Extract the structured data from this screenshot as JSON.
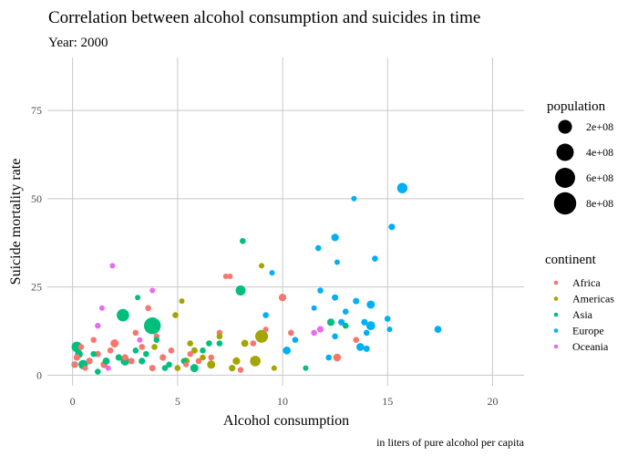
{
  "chart_data": {
    "type": "scatter",
    "title": "Correlation between alcohol consumption and suicides in time",
    "subtitle": "Year: 2000",
    "xlabel": "Alcohol consumption",
    "ylabel": "Suicide mortality rate",
    "caption": "in liters of pure alcohol per capita",
    "xlim": [
      -1.2,
      21.5
    ],
    "ylim": [
      -3,
      90
    ],
    "x_ticks": [
      0,
      5,
      10,
      15,
      20
    ],
    "y_ticks": [
      0,
      25,
      50,
      75
    ],
    "grid": true,
    "size_legend": {
      "title": "population",
      "entries": [
        {
          "label": "2e+08",
          "value": 200000000
        },
        {
          "label": "4e+08",
          "value": 400000000
        },
        {
          "label": "6e+08",
          "value": 600000000
        },
        {
          "label": "8e+08",
          "value": 800000000
        }
      ]
    },
    "color_legend": {
      "title": "continent",
      "placement": "right",
      "entries": [
        {
          "label": "Africa",
          "color": "#F8766D"
        },
        {
          "label": "Americas",
          "color": "#A3A500"
        },
        {
          "label": "Asia",
          "color": "#00BF7D"
        },
        {
          "label": "Europe",
          "color": "#00B0F6"
        },
        {
          "label": "Oceania",
          "color": "#E76BF3"
        }
      ]
    },
    "series": [
      {
        "name": "Africa",
        "color": "#F8766D",
        "points": [
          [
            0.1,
            3,
            10000000
          ],
          [
            0.2,
            5,
            20000000
          ],
          [
            0.4,
            8,
            10000000
          ],
          [
            0.6,
            2,
            5000000
          ],
          [
            0.8,
            4,
            15000000
          ],
          [
            1.0,
            10,
            8000000
          ],
          [
            1.2,
            6,
            12000000
          ],
          [
            1.5,
            3,
            30000000
          ],
          [
            1.8,
            7,
            10000000
          ],
          [
            2.0,
            9,
            60000000
          ],
          [
            2.5,
            5,
            20000000
          ],
          [
            2.8,
            4,
            15000000
          ],
          [
            3.0,
            12,
            10000000
          ],
          [
            3.3,
            8,
            10000000
          ],
          [
            3.6,
            19,
            10000000
          ],
          [
            4.0,
            11,
            10000000
          ],
          [
            4.3,
            5,
            20000000
          ],
          [
            5.4,
            3,
            5000000
          ],
          [
            5.6,
            6,
            8000000
          ],
          [
            6.0,
            4,
            10000000
          ],
          [
            6.6,
            5,
            10000000
          ],
          [
            7.0,
            12,
            10000000
          ],
          [
            7.3,
            28,
            5000000
          ],
          [
            7.5,
            28,
            5000000
          ],
          [
            8.0,
            1.5,
            8000000
          ],
          [
            8.6,
            9,
            10000000
          ],
          [
            9.2,
            13,
            5000000
          ],
          [
            10.0,
            22,
            40000000
          ],
          [
            10.4,
            12,
            10000000
          ],
          [
            12.6,
            5,
            50000000
          ],
          [
            13.5,
            10,
            10000000
          ],
          [
            4.7,
            7,
            10000000
          ],
          [
            3.8,
            2,
            15000000
          ]
        ]
      },
      {
        "name": "Americas",
        "color": "#A3A500",
        "points": [
          [
            4.9,
            17,
            10000000
          ],
          [
            5.2,
            21,
            5000000
          ],
          [
            5.0,
            2,
            10000000
          ],
          [
            5.4,
            4,
            30000000
          ],
          [
            5.8,
            7,
            15000000
          ],
          [
            6.2,
            5,
            10000000
          ],
          [
            6.6,
            3,
            60000000
          ],
          [
            7.0,
            11,
            10000000
          ],
          [
            7.6,
            2,
            20000000
          ],
          [
            7.8,
            4,
            40000000
          ],
          [
            8.2,
            9,
            30000000
          ],
          [
            8.7,
            4,
            150000000
          ],
          [
            9.0,
            11,
            280000000
          ],
          [
            9.0,
            31,
            5000000
          ],
          [
            9.6,
            2,
            5000000
          ],
          [
            3.9,
            8,
            10000000
          ],
          [
            5.6,
            9,
            10000000
          ]
        ]
      },
      {
        "name": "Asia",
        "color": "#00BF7D",
        "points": [
          [
            0.1,
            3,
            20000000
          ],
          [
            0.2,
            8,
            150000000
          ],
          [
            0.3,
            6,
            50000000
          ],
          [
            0.5,
            3,
            100000000
          ],
          [
            0.8,
            4,
            20000000
          ],
          [
            1.0,
            6,
            10000000
          ],
          [
            1.2,
            1,
            10000000
          ],
          [
            1.6,
            4,
            30000000
          ],
          [
            2.2,
            5,
            20000000
          ],
          [
            2.4,
            17,
            260000000
          ],
          [
            2.5,
            4,
            80000000
          ],
          [
            3.0,
            7,
            10000000
          ],
          [
            3.1,
            22,
            5000000
          ],
          [
            3.3,
            4,
            20000000
          ],
          [
            3.5,
            6,
            10000000
          ],
          [
            3.8,
            14,
            600000000
          ],
          [
            4.0,
            10,
            10000000
          ],
          [
            4.4,
            2,
            10000000
          ],
          [
            4.6,
            3,
            10000000
          ],
          [
            5.3,
            4,
            10000000
          ],
          [
            5.8,
            2,
            60000000
          ],
          [
            6.2,
            7,
            10000000
          ],
          [
            6.5,
            9,
            10000000
          ],
          [
            7.0,
            9,
            10000000
          ],
          [
            8.0,
            24,
            130000000
          ],
          [
            8.1,
            38,
            10000000
          ],
          [
            11.1,
            2,
            5000000
          ],
          [
            12.3,
            15,
            40000000
          ],
          [
            13.0,
            14,
            10000000
          ]
        ]
      },
      {
        "name": "Europe",
        "color": "#00B0F6",
        "points": [
          [
            9.2,
            17,
            10000000
          ],
          [
            9.5,
            29,
            5000000
          ],
          [
            10.2,
            7,
            50000000
          ],
          [
            10.6,
            10,
            10000000
          ],
          [
            11.5,
            19,
            5000000
          ],
          [
            11.8,
            24,
            10000000
          ],
          [
            11.7,
            36,
            10000000
          ],
          [
            12.2,
            5,
            10000000
          ],
          [
            12.5,
            39,
            40000000
          ],
          [
            12.6,
            32,
            5000000
          ],
          [
            12.5,
            22,
            15000000
          ],
          [
            12.8,
            15,
            20000000
          ],
          [
            13.0,
            18,
            10000000
          ],
          [
            13.4,
            50,
            5000000
          ],
          [
            13.5,
            21,
            15000000
          ],
          [
            13.7,
            8,
            50000000
          ],
          [
            13.9,
            15,
            20000000
          ],
          [
            14.2,
            20,
            60000000
          ],
          [
            14.2,
            14,
            80000000
          ],
          [
            14.4,
            33,
            10000000
          ],
          [
            15.0,
            16,
            10000000
          ],
          [
            15.1,
            13,
            5000000
          ],
          [
            15.2,
            42,
            20000000
          ],
          [
            15.7,
            53,
            140000000
          ],
          [
            17.4,
            13,
            30000000
          ],
          [
            14.0,
            12,
            10000000
          ],
          [
            14.0,
            7.5,
            15000000
          ],
          [
            12.5,
            11,
            10000000
          ]
        ]
      },
      {
        "name": "Oceania",
        "color": "#E76BF3",
        "points": [
          [
            1.2,
            14,
            8000000
          ],
          [
            1.4,
            19,
            5000000
          ],
          [
            1.9,
            31,
            5000000
          ],
          [
            3.8,
            24,
            5000000
          ],
          [
            11.8,
            13,
            20000000
          ],
          [
            11.5,
            12,
            10000000
          ],
          [
            1.7,
            2,
            5000000
          ],
          [
            3.2,
            10,
            5000000
          ]
        ]
      }
    ]
  }
}
